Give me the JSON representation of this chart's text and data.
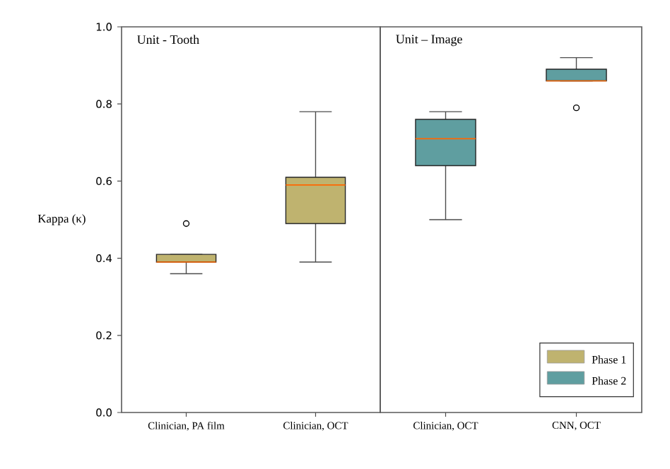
{
  "chart_data": [
    {
      "type": "box",
      "title": "Unit - Tooth",
      "ylabel": "Kappa (κ)",
      "categories": [
        "Clinician, PA film",
        "Clinician, OCT"
      ],
      "ylim": [
        0,
        1
      ],
      "yticks": [
        {
          "value": 0,
          "label": "0.0"
        },
        0.2,
        0.4,
        0.6,
        0.8,
        {
          "value": 1,
          "label": "1.0"
        }
      ],
      "series": [
        {
          "color": "#bfb36f",
          "boxes": [
            {
              "low": 0.36,
              "q1": 0.39,
              "median": 0.39,
              "q3": 0.41,
              "high": 0.41,
              "outliers": [
                0.49
              ]
            },
            {
              "low": 0.39,
              "q1": 0.49,
              "median": 0.59,
              "q3": 0.61,
              "high": 0.78
            }
          ]
        }
      ],
      "legend": false
    },
    {
      "type": "box",
      "title": "Unit – Image",
      "categories": [
        "Clinician, OCT",
        "CNN, OCT"
      ],
      "ylim": [
        0,
        1
      ],
      "tick_labels": "x",
      "series": [
        {
          "name": "Phase 1",
          "color": "#bfb36f",
          "boxes": [
            null,
            null
          ]
        },
        {
          "name": "Phase 2",
          "color": "#5f9ea0",
          "boxes": [
            {
              "low": 0.5,
              "q1": 0.64,
              "median": 0.71,
              "q3": 0.76,
              "high": 0.78
            },
            {
              "low": 0.86,
              "q1": 0.86,
              "median": 0.86,
              "q3": 0.89,
              "high": 0.92,
              "outliers": [
                0.79
              ]
            }
          ]
        }
      ],
      "legend": "bottom right"
    }
  ]
}
